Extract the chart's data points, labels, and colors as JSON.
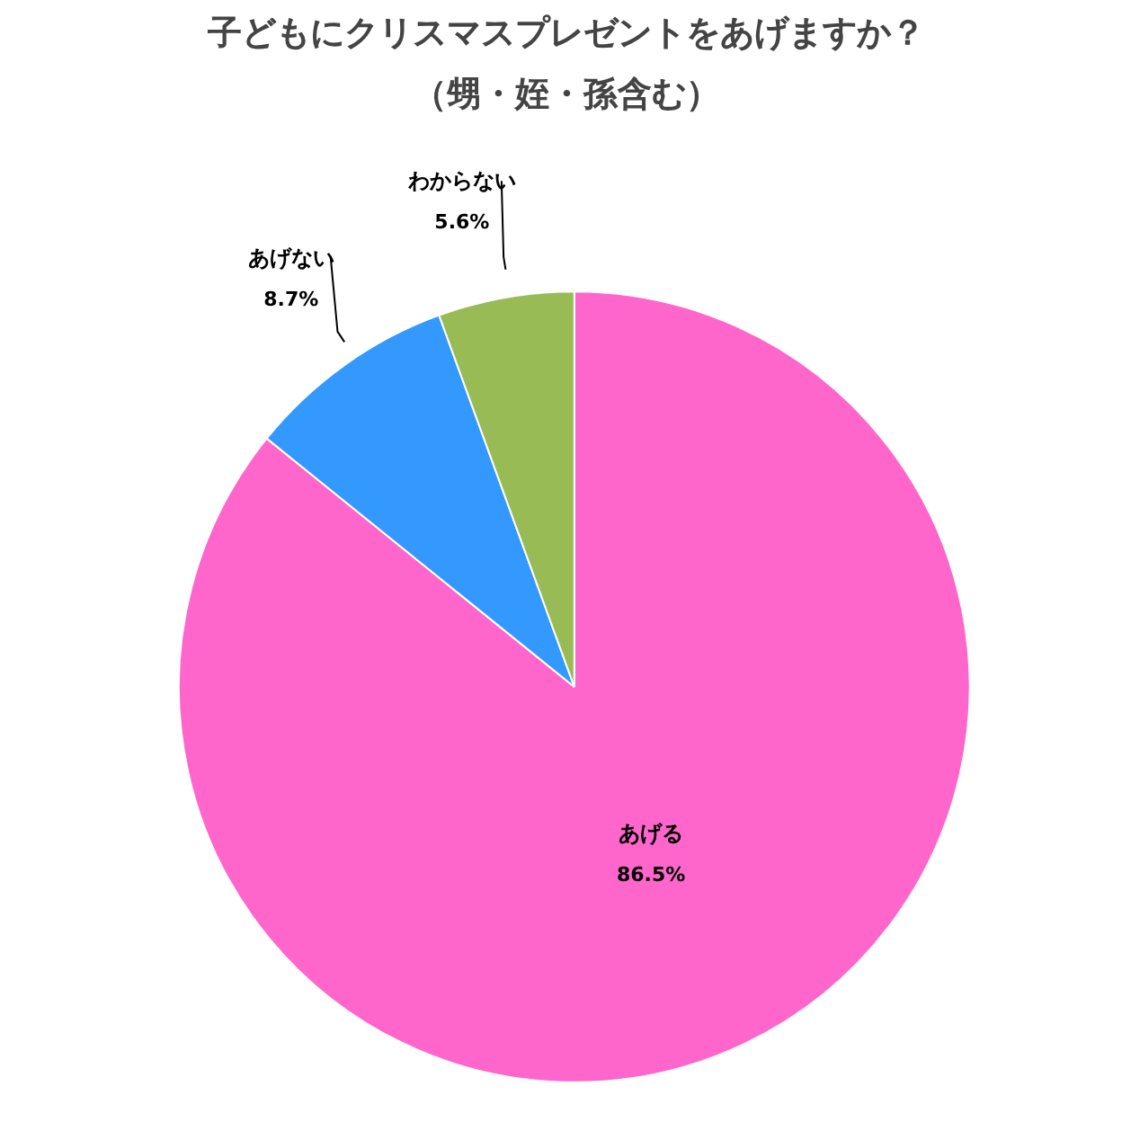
{
  "chart_data": {
    "type": "pie",
    "title": "子どもにクリスマスプレゼントをあげますか？",
    "subtitle": "（甥・姪・孫含む）",
    "categories": [
      "あげる",
      "あげない",
      "わからない"
    ],
    "values": [
      86.5,
      8.7,
      5.6
    ],
    "colors": [
      "#ff66cc",
      "#3399ff",
      "#99bb55"
    ],
    "value_labels": [
      "86.5%",
      "8.7%",
      "5.6%"
    ]
  }
}
